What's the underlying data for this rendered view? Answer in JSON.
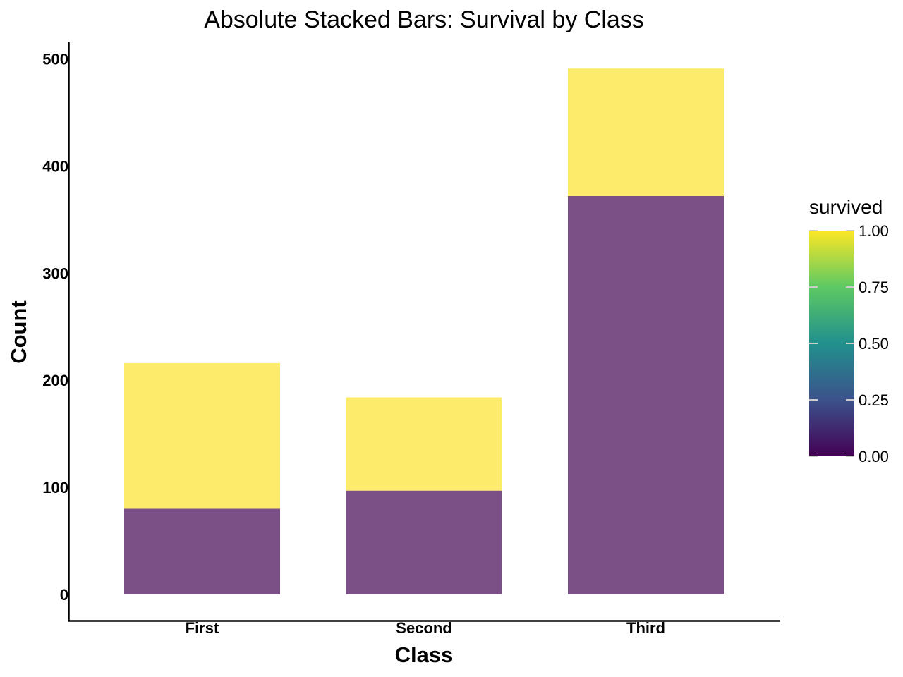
{
  "chart_data": {
    "type": "bar",
    "stacked": true,
    "title": "Absolute Stacked Bars: Survival by Class",
    "xlabel": "Class",
    "ylabel": "Count",
    "categories": [
      "First",
      "Second",
      "Third"
    ],
    "ylim": [
      0,
      525
    ],
    "yticks": [
      0,
      100,
      200,
      300,
      400,
      500
    ],
    "series": [
      {
        "survived": 0,
        "color": "#7b5087",
        "values": [
          80,
          97,
          372
        ]
      },
      {
        "survived": 1,
        "color": "#fdeb6b",
        "values": [
          136,
          87,
          119
        ]
      }
    ],
    "grid": false,
    "legend": {
      "title": "survived",
      "type": "colorbar",
      "placement": "right",
      "ticks": [
        "0.00",
        "0.25",
        "0.50",
        "0.75",
        "1.00"
      ],
      "colors": [
        "#440154",
        "#3b528b",
        "#21908d",
        "#5dc963",
        "#fde725"
      ]
    }
  }
}
